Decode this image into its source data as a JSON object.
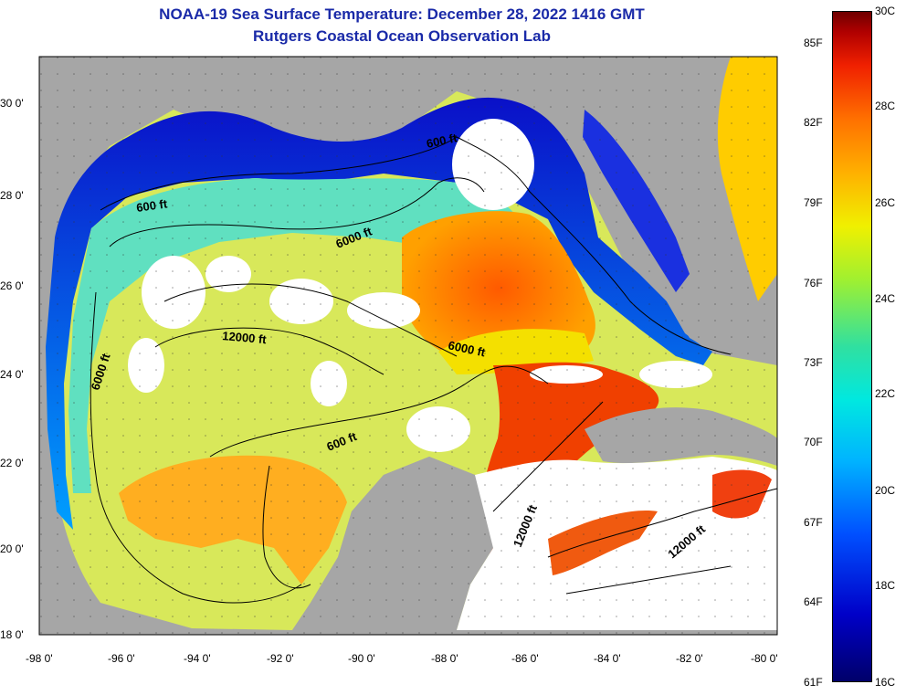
{
  "title": {
    "line1": "NOAA-19 Sea Surface Temperature:  December 28, 2022 1416 GMT",
    "line2": "Rutgers Coastal Ocean Observation Lab"
  },
  "axes": {
    "longitude_labels": [
      "-98 0'",
      "-96 0'",
      "-94 0'",
      "-92 0'",
      "-90 0'",
      "-88 0'",
      "-86 0'",
      "-84 0'",
      "-82 0'",
      "-80 0'"
    ],
    "latitude_labels": [
      "30 0'",
      "28 0'",
      "26 0'",
      "24 0'",
      "22 0'",
      "20 0'",
      "18 0'"
    ]
  },
  "contour_labels": [
    "600 ft",
    "600 ft",
    "6000 ft",
    "12000 ft",
    "6000 ft",
    "6000 ft",
    "600 ft",
    "12000 ft",
    "12000 ft"
  ],
  "colorbar": {
    "celsius_labels": [
      "30C",
      "28C",
      "26C",
      "24C",
      "22C",
      "20C",
      "18C",
      "16C"
    ],
    "fahrenheit_labels": [
      "85F",
      "82F",
      "79F",
      "76F",
      "73F",
      "70F",
      "67F",
      "64F",
      "61F"
    ]
  },
  "colors": {
    "title": "#1a2aa8",
    "land": "#a6a6a6",
    "cloud": "#ffffff",
    "cold": "#0000c8",
    "warm": "#ff6a00",
    "hot": "#e82000"
  }
}
